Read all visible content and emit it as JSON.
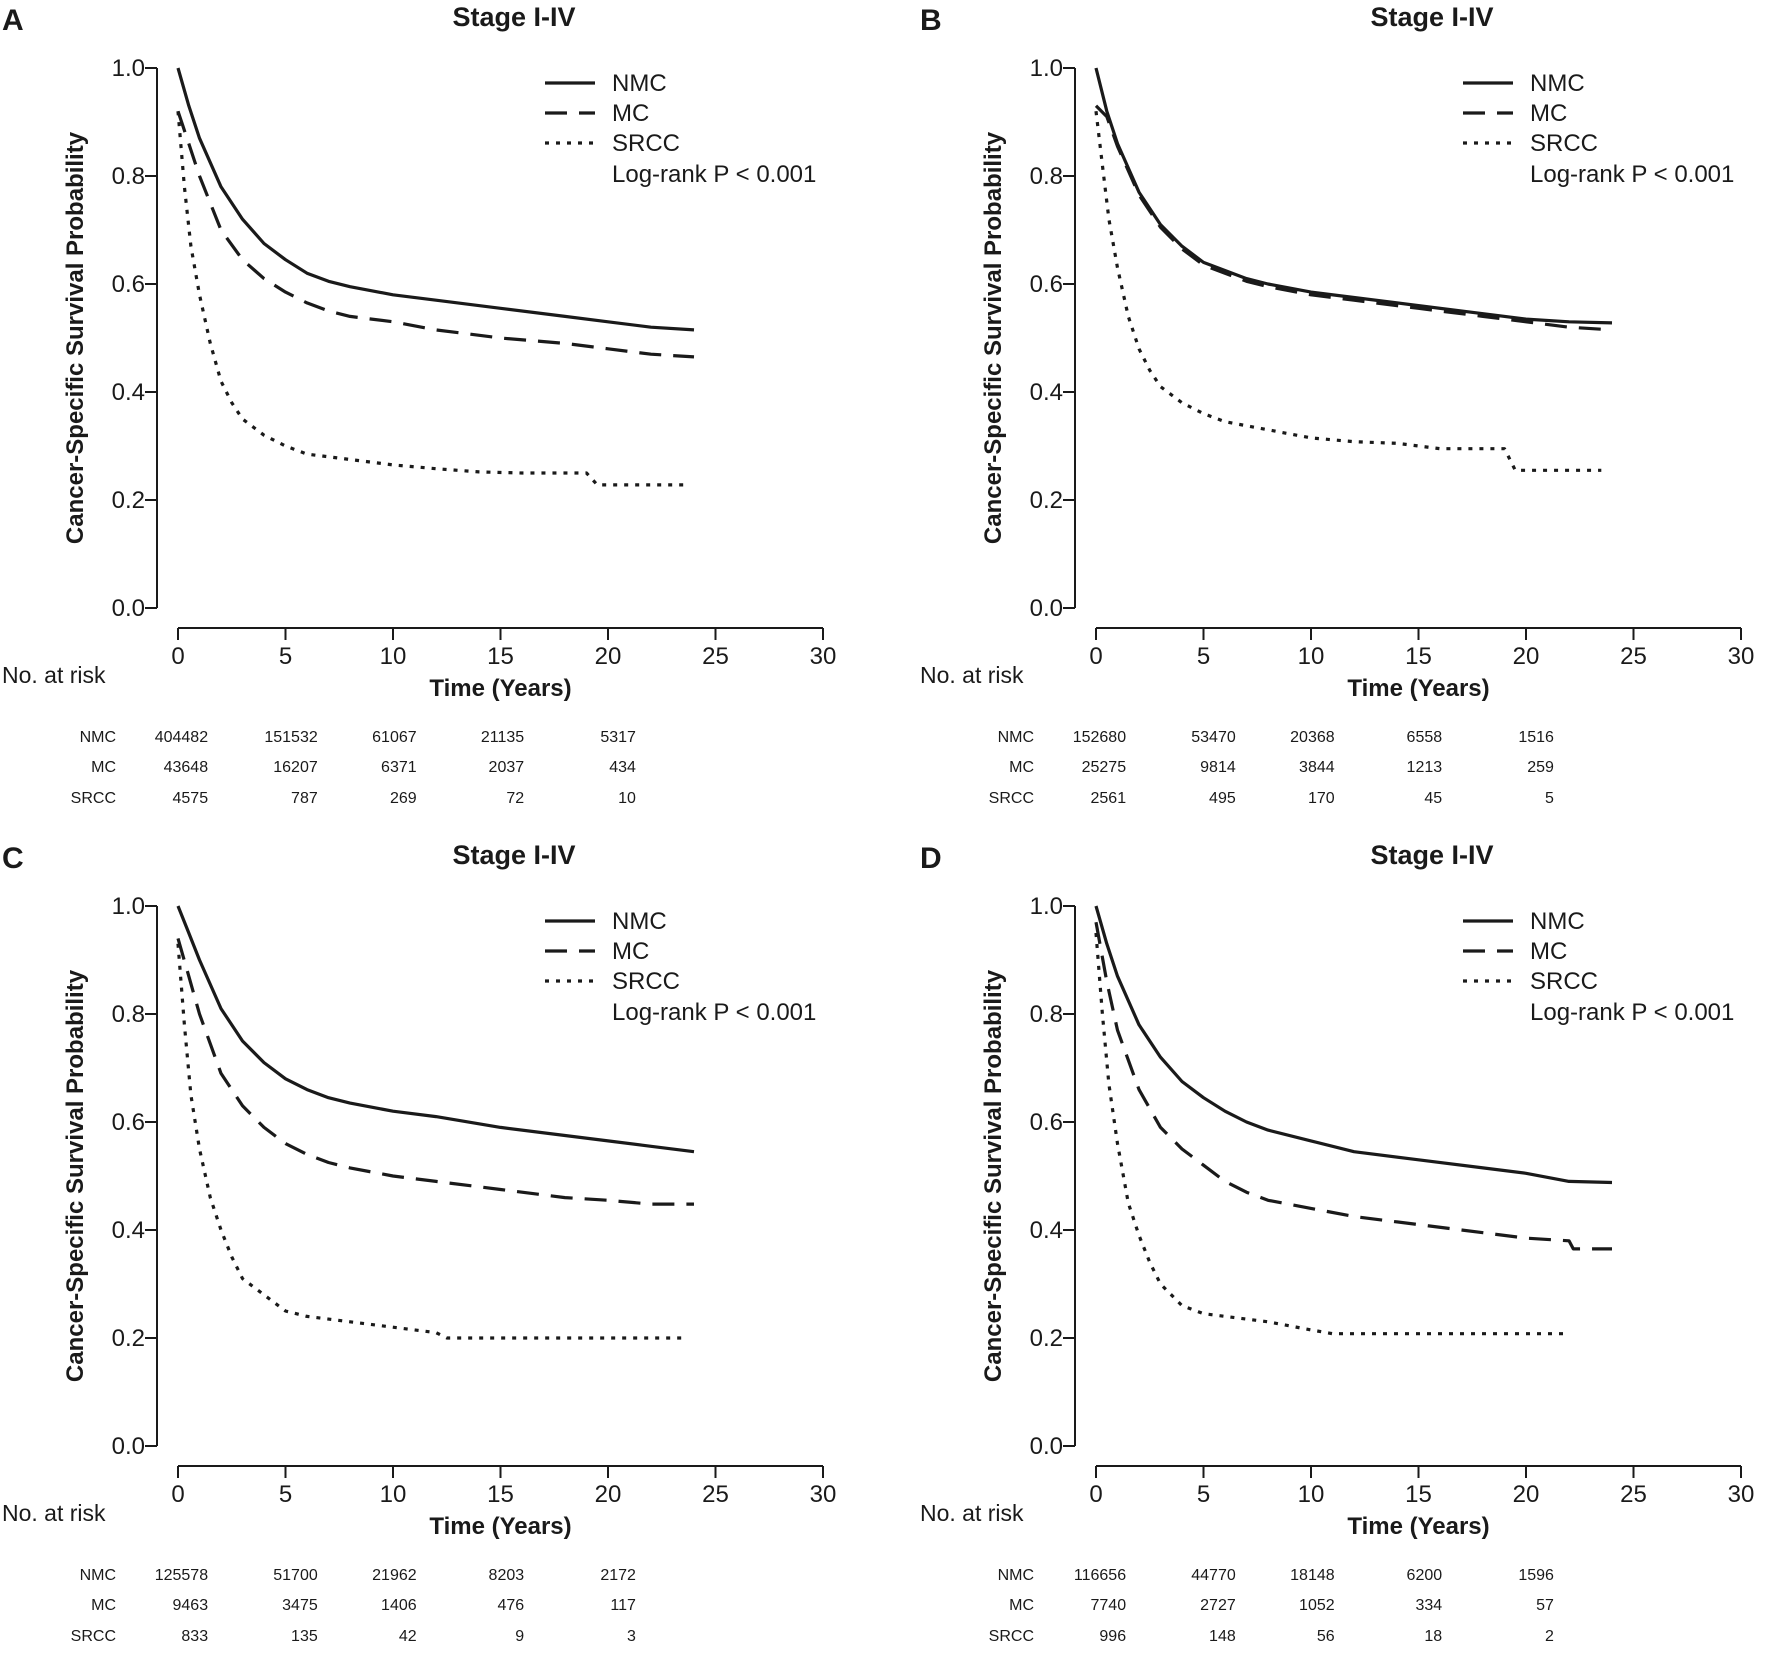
{
  "chart_data": [
    {
      "panel": "A",
      "type": "line",
      "title": "Stage I-IV",
      "xlabel": "Time (Years)",
      "ylabel": "Cancer-Specific Survival Probability",
      "xlim": [
        0,
        30
      ],
      "ylim": [
        0,
        1
      ],
      "x_ticks": [
        "0",
        "5",
        "10",
        "15",
        "20",
        "25",
        "30"
      ],
      "y_ticks": [
        "0.0",
        "0.2",
        "0.4",
        "0.6",
        "0.8",
        "1.0"
      ],
      "grid": false,
      "legend_position": "top-right",
      "annotation": "Log-rank P < 0.001",
      "series": [
        {
          "name": "NMC",
          "style": "solid",
          "x": [
            0,
            0.5,
            1,
            2,
            3,
            4,
            5,
            6,
            7,
            8,
            10,
            12,
            15,
            18,
            20,
            22,
            24
          ],
          "y": [
            1.0,
            0.93,
            0.87,
            0.78,
            0.72,
            0.675,
            0.645,
            0.62,
            0.605,
            0.595,
            0.58,
            0.57,
            0.555,
            0.54,
            0.53,
            0.52,
            0.515
          ]
        },
        {
          "name": "MC",
          "style": "dashed",
          "x": [
            0,
            0.5,
            1,
            2,
            3,
            4,
            5,
            6,
            7,
            8,
            10,
            12,
            15,
            18,
            20,
            22,
            24
          ],
          "y": [
            0.92,
            0.86,
            0.8,
            0.7,
            0.645,
            0.61,
            0.585,
            0.565,
            0.55,
            0.54,
            0.53,
            0.515,
            0.5,
            0.49,
            0.48,
            0.47,
            0.465
          ]
        },
        {
          "name": "SRCC",
          "style": "dotted",
          "x": [
            0,
            0.3,
            0.6,
            1,
            1.5,
            2,
            2.5,
            3,
            4,
            5,
            6,
            8,
            10,
            12,
            14,
            16,
            19,
            19.5,
            23.5
          ],
          "y": [
            0.92,
            0.78,
            0.67,
            0.58,
            0.49,
            0.42,
            0.38,
            0.35,
            0.32,
            0.3,
            0.285,
            0.275,
            0.265,
            0.258,
            0.252,
            0.25,
            0.25,
            0.228,
            0.228
          ]
        }
      ],
      "at_risk": {
        "label": "No. at risk",
        "rows": [
          {
            "group": "NMC",
            "values": [
              "404482",
              "151532",
              "61067",
              "21135",
              "5317"
            ]
          },
          {
            "group": "MC",
            "values": [
              "43648",
              "16207",
              "6371",
              "2037",
              "434"
            ]
          },
          {
            "group": "SRCC",
            "values": [
              "4575",
              "787",
              "269",
              "72",
              "10"
            ]
          }
        ]
      }
    },
    {
      "panel": "B",
      "type": "line",
      "title": "Stage I-IV",
      "xlabel": "Time (Years)",
      "ylabel": "Cancer-Specific Survival Probability",
      "xlim": [
        0,
        30
      ],
      "ylim": [
        0,
        1
      ],
      "x_ticks": [
        "0",
        "5",
        "10",
        "15",
        "20",
        "25",
        "30"
      ],
      "y_ticks": [
        "0.0",
        "0.2",
        "0.4",
        "0.6",
        "0.8",
        "1.0"
      ],
      "grid": false,
      "legend_position": "top-right",
      "annotation": "Log-rank P < 0.001",
      "series": [
        {
          "name": "NMC",
          "style": "solid",
          "x": [
            0,
            0.5,
            1,
            2,
            3,
            4,
            5,
            6,
            7,
            8,
            10,
            12,
            15,
            18,
            20,
            22,
            24
          ],
          "y": [
            1.0,
            0.92,
            0.86,
            0.77,
            0.71,
            0.67,
            0.64,
            0.625,
            0.61,
            0.6,
            0.585,
            0.575,
            0.56,
            0.545,
            0.535,
            0.53,
            0.528
          ]
        },
        {
          "name": "MC",
          "style": "dashed",
          "x": [
            0,
            0.5,
            1,
            2,
            3,
            4,
            5,
            6,
            7,
            8,
            10,
            12,
            15,
            18,
            20,
            22,
            24
          ],
          "y": [
            0.93,
            0.91,
            0.855,
            0.765,
            0.705,
            0.665,
            0.635,
            0.62,
            0.605,
            0.595,
            0.58,
            0.57,
            0.555,
            0.54,
            0.53,
            0.52,
            0.515
          ]
        },
        {
          "name": "SRCC",
          "style": "dotted",
          "x": [
            0,
            0.3,
            0.6,
            1,
            1.5,
            2,
            2.5,
            3,
            4,
            5,
            6,
            8,
            10,
            12,
            14,
            16,
            19,
            19.5,
            23.5
          ],
          "y": [
            0.92,
            0.82,
            0.72,
            0.63,
            0.54,
            0.48,
            0.44,
            0.41,
            0.38,
            0.36,
            0.345,
            0.33,
            0.315,
            0.308,
            0.305,
            0.295,
            0.295,
            0.255,
            0.255
          ]
        }
      ],
      "at_risk": {
        "label": "No. at risk",
        "rows": [
          {
            "group": "NMC",
            "values": [
              "152680",
              "53470",
              "20368",
              "6558",
              "1516"
            ]
          },
          {
            "group": "MC",
            "values": [
              "25275",
              "9814",
              "3844",
              "1213",
              "259"
            ]
          },
          {
            "group": "SRCC",
            "values": [
              "2561",
              "495",
              "170",
              "45",
              "5"
            ]
          }
        ]
      }
    },
    {
      "panel": "C",
      "type": "line",
      "title": "Stage I-IV",
      "xlabel": "Time (Years)",
      "ylabel": "Cancer-Specific Survival Probability",
      "xlim": [
        0,
        30
      ],
      "ylim": [
        0,
        1
      ],
      "x_ticks": [
        "0",
        "5",
        "10",
        "15",
        "20",
        "25",
        "30"
      ],
      "y_ticks": [
        "0.0",
        "0.2",
        "0.4",
        "0.6",
        "0.8",
        "1.0"
      ],
      "grid": false,
      "legend_position": "top-right",
      "annotation": "Log-rank P < 0.001",
      "series": [
        {
          "name": "NMC",
          "style": "solid",
          "x": [
            0,
            0.5,
            1,
            2,
            3,
            4,
            5,
            6,
            7,
            8,
            10,
            12,
            15,
            18,
            20,
            22,
            24
          ],
          "y": [
            1.0,
            0.95,
            0.9,
            0.81,
            0.75,
            0.71,
            0.68,
            0.66,
            0.645,
            0.635,
            0.62,
            0.61,
            0.59,
            0.575,
            0.565,
            0.555,
            0.545
          ]
        },
        {
          "name": "MC",
          "style": "dashed",
          "x": [
            0,
            0.5,
            1,
            2,
            3,
            4,
            5,
            6,
            7,
            8,
            10,
            12,
            15,
            18,
            20,
            22,
            24
          ],
          "y": [
            0.94,
            0.87,
            0.8,
            0.69,
            0.63,
            0.59,
            0.56,
            0.54,
            0.525,
            0.515,
            0.5,
            0.49,
            0.475,
            0.46,
            0.455,
            0.448,
            0.448
          ]
        },
        {
          "name": "SRCC",
          "style": "dotted",
          "x": [
            0,
            0.3,
            0.6,
            1,
            1.5,
            2,
            2.5,
            3,
            4,
            5,
            6,
            8,
            10,
            12,
            12.5,
            23.5
          ],
          "y": [
            0.93,
            0.78,
            0.65,
            0.55,
            0.46,
            0.4,
            0.35,
            0.31,
            0.28,
            0.25,
            0.24,
            0.23,
            0.22,
            0.21,
            0.2,
            0.2
          ]
        }
      ],
      "at_risk": {
        "label": "No. at risk",
        "rows": [
          {
            "group": "NMC",
            "values": [
              "125578",
              "51700",
              "21962",
              "8203",
              "2172"
            ]
          },
          {
            "group": "MC",
            "values": [
              "9463",
              "3475",
              "1406",
              "476",
              "117"
            ]
          },
          {
            "group": "SRCC",
            "values": [
              "833",
              "135",
              "42",
              "9",
              "3"
            ]
          }
        ]
      }
    },
    {
      "panel": "D",
      "type": "line",
      "title": "Stage I-IV",
      "xlabel": "Time (Years)",
      "ylabel": "Cancer-Specific Survival Probability",
      "xlim": [
        0,
        30
      ],
      "ylim": [
        0,
        1
      ],
      "x_ticks": [
        "0",
        "5",
        "10",
        "15",
        "20",
        "25",
        "30"
      ],
      "y_ticks": [
        "0.0",
        "0.2",
        "0.4",
        "0.6",
        "0.8",
        "1.0"
      ],
      "grid": false,
      "legend_position": "top-right",
      "annotation": "Log-rank P < 0.001",
      "series": [
        {
          "name": "NMC",
          "style": "solid",
          "x": [
            0,
            0.5,
            1,
            2,
            3,
            4,
            5,
            6,
            7,
            8,
            10,
            12,
            15,
            18,
            20,
            22,
            24
          ],
          "y": [
            1.0,
            0.93,
            0.87,
            0.78,
            0.72,
            0.675,
            0.645,
            0.62,
            0.6,
            0.585,
            0.565,
            0.545,
            0.53,
            0.515,
            0.505,
            0.49,
            0.488
          ]
        },
        {
          "name": "MC",
          "style": "dashed",
          "x": [
            0,
            0.5,
            1,
            2,
            3,
            4,
            5,
            6,
            7,
            8,
            10,
            12,
            15,
            18,
            20,
            22,
            22.2,
            24
          ],
          "y": [
            0.97,
            0.86,
            0.77,
            0.66,
            0.59,
            0.55,
            0.52,
            0.49,
            0.47,
            0.455,
            0.44,
            0.425,
            0.41,
            0.395,
            0.385,
            0.38,
            0.365,
            0.365
          ]
        },
        {
          "name": "SRCC",
          "style": "dotted",
          "x": [
            0,
            0.3,
            0.6,
            1,
            1.5,
            2,
            2.5,
            3,
            4,
            5,
            6,
            8,
            10,
            11,
            22
          ],
          "y": [
            0.95,
            0.8,
            0.67,
            0.56,
            0.45,
            0.39,
            0.34,
            0.3,
            0.26,
            0.245,
            0.24,
            0.23,
            0.215,
            0.208,
            0.208
          ]
        }
      ],
      "at_risk": {
        "label": "No. at risk",
        "rows": [
          {
            "group": "NMC",
            "values": [
              "116656",
              "44770",
              "18148",
              "6200",
              "1596"
            ]
          },
          {
            "group": "MC",
            "values": [
              "7740",
              "2727",
              "1052",
              "334",
              "57"
            ]
          },
          {
            "group": "SRCC",
            "values": [
              "996",
              "148",
              "56",
              "18",
              "2"
            ]
          }
        ]
      }
    }
  ]
}
